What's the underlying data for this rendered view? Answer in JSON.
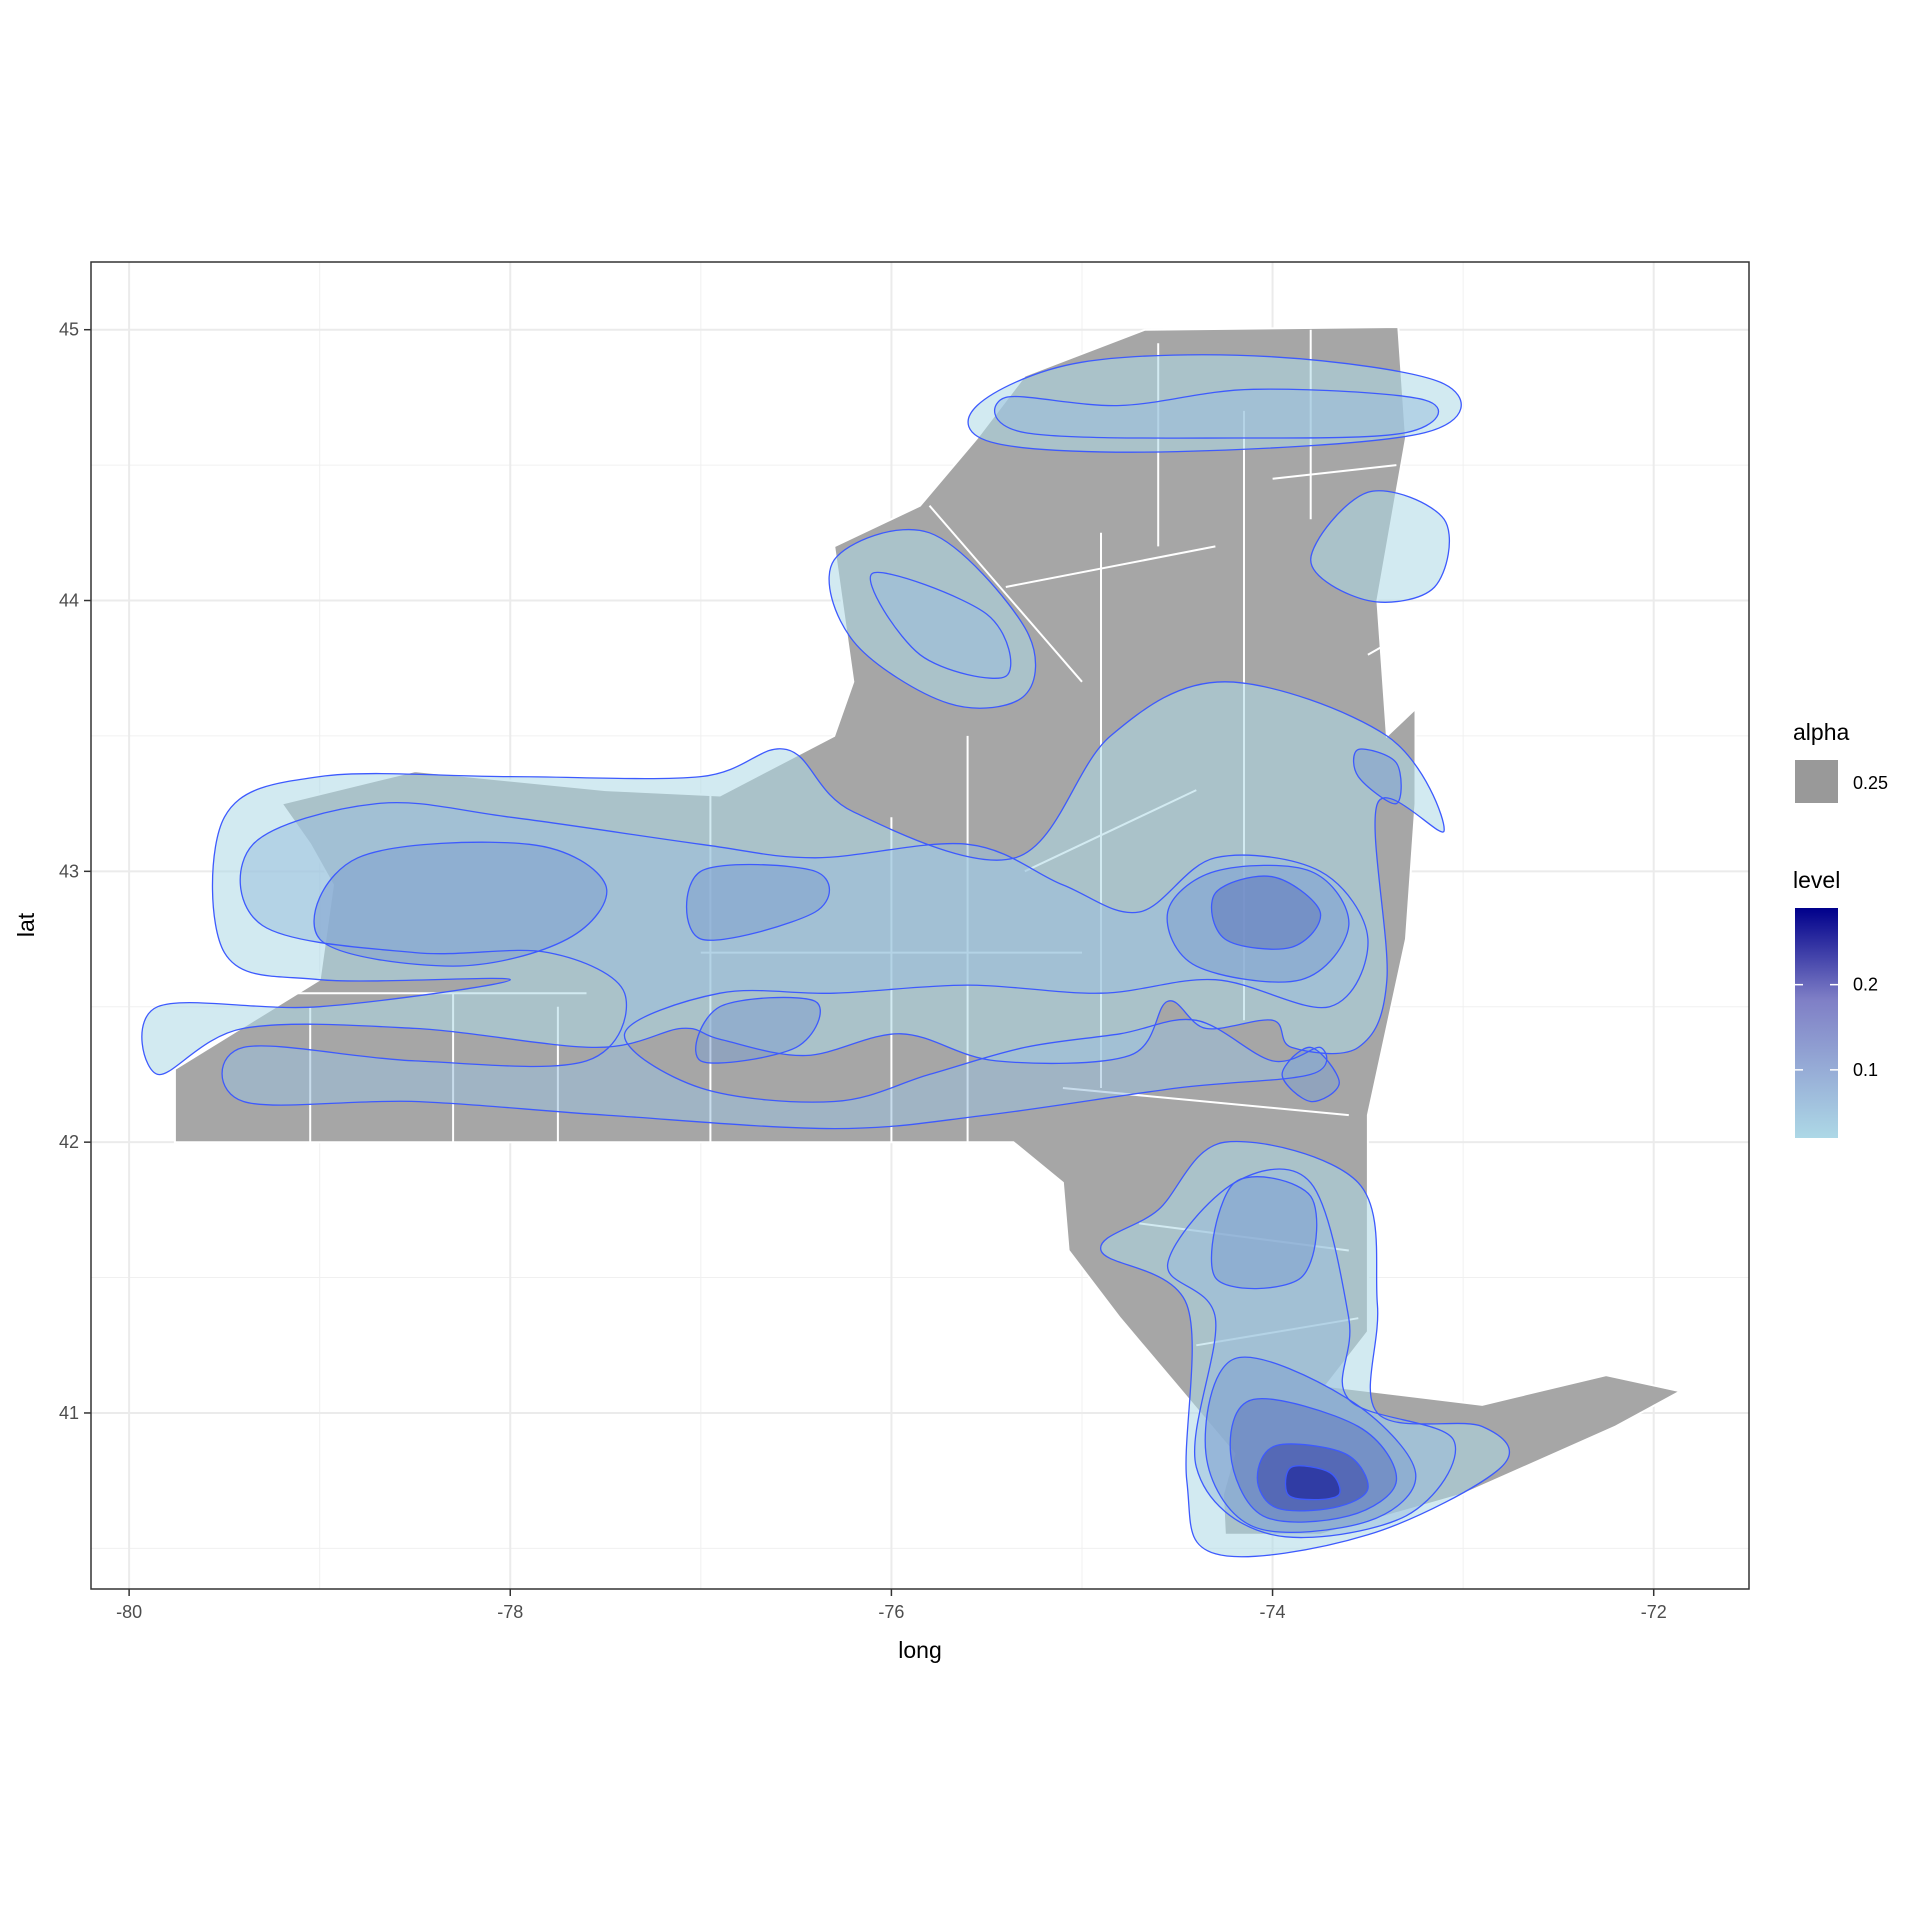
{
  "chart_data": {
    "type": "density-map",
    "title": "",
    "xlabel": "long",
    "ylabel": "lat",
    "xlim": [
      -80.2,
      -71.5
    ],
    "ylim": [
      40.35,
      45.25
    ],
    "x_ticks": [
      -80,
      -78,
      -76,
      -74,
      -72
    ],
    "y_ticks": [
      41,
      42,
      43,
      44,
      45
    ],
    "x_tick_labels": [
      "-80",
      "-78",
      "-76",
      "-74",
      "-72"
    ],
    "y_tick_labels": [
      "41",
      "42",
      "43",
      "44",
      "45"
    ],
    "grid": true,
    "legend_position": "right",
    "legend": {
      "alpha": {
        "title": "alpha",
        "entries": [
          {
            "label": "0.25",
            "color": "#999999"
          }
        ]
      },
      "level": {
        "title": "level",
        "tick_values": [
          0.1,
          0.2
        ],
        "tick_labels": [
          "0.1",
          "0.2"
        ],
        "range": [
          0.02,
          0.29
        ],
        "low_color": "#add8e6",
        "high_color": "#00008b"
      }
    },
    "colors": {
      "map_fill": "#a6a6a6",
      "county_border": "#ffffff",
      "contour_line": "#3d5afe",
      "grid": "#ebebeb",
      "panel_border": "#333333"
    },
    "state_outline": [
      [
        -79.76,
        42.0
      ],
      [
        -79.76,
        42.27
      ],
      [
        -79.0,
        42.6
      ],
      [
        -78.93,
        42.95
      ],
      [
        -79.05,
        43.1
      ],
      [
        -79.2,
        43.25
      ],
      [
        -78.5,
        43.37
      ],
      [
        -77.5,
        43.3
      ],
      [
        -76.9,
        43.28
      ],
      [
        -76.3,
        43.5
      ],
      [
        -76.2,
        43.7
      ],
      [
        -76.3,
        44.2
      ],
      [
        -75.85,
        44.35
      ],
      [
        -75.55,
        44.6
      ],
      [
        -75.3,
        44.83
      ],
      [
        -74.67,
        45.0
      ],
      [
        -73.34,
        45.01
      ],
      [
        -73.3,
        44.6
      ],
      [
        -73.45,
        44.0
      ],
      [
        -73.4,
        43.5
      ],
      [
        -73.25,
        43.6
      ],
      [
        -73.25,
        43.25
      ],
      [
        -73.3,
        42.75
      ],
      [
        -73.5,
        42.1
      ],
      [
        -73.5,
        41.3
      ],
      [
        -73.72,
        41.1
      ],
      [
        -72.9,
        41.03
      ],
      [
        -72.25,
        41.14
      ],
      [
        -71.86,
        41.08
      ],
      [
        -72.2,
        40.95
      ],
      [
        -73.0,
        40.7
      ],
      [
        -73.75,
        40.55
      ],
      [
        -74.25,
        40.55
      ],
      [
        -74.26,
        40.7
      ],
      [
        -74.2,
        40.85
      ],
      [
        -74.5,
        41.1
      ],
      [
        -74.8,
        41.35
      ],
      [
        -75.07,
        41.6
      ],
      [
        -75.1,
        41.85
      ],
      [
        -75.36,
        42.0
      ]
    ],
    "density_levels": [
      {
        "level": 0.02,
        "regions": [
          [
            [
              -79.85,
              42.25
            ],
            [
              -79.4,
              42.42
            ],
            [
              -78.5,
              42.42
            ],
            [
              -77.55,
              42.35
            ],
            [
              -77.1,
              42.42
            ],
            [
              -76.9,
              42.38
            ],
            [
              -76.45,
              42.32
            ],
            [
              -75.95,
              42.4
            ],
            [
              -75.45,
              42.3
            ],
            [
              -74.75,
              42.32
            ],
            [
              -74.55,
              42.52
            ],
            [
              -74.35,
              42.42
            ],
            [
              -74.0,
              42.45
            ],
            [
              -73.9,
              42.35
            ],
            [
              -73.55,
              42.35
            ],
            [
              -73.4,
              42.6
            ],
            [
              -73.45,
              43.25
            ],
            [
              -73.1,
              43.15
            ],
            [
              -73.4,
              43.5
            ],
            [
              -74.25,
              43.7
            ],
            [
              -74.85,
              43.5
            ],
            [
              -75.35,
              43.05
            ],
            [
              -76.2,
              43.22
            ],
            [
              -76.55,
              43.45
            ],
            [
              -77.0,
              43.35
            ],
            [
              -78.0,
              43.35
            ],
            [
              -79.0,
              43.35
            ],
            [
              -79.5,
              43.2
            ],
            [
              -79.5,
              42.7
            ],
            [
              -79.0,
              42.6
            ],
            [
              -78.0,
              42.6
            ],
            [
              -79.0,
              42.5
            ],
            [
              -79.85,
              42.5
            ]
          ],
          [
            [
              -74.6,
              41.75
            ],
            [
              -74.25,
              42.0
            ],
            [
              -73.55,
              41.85
            ],
            [
              -73.45,
              41.4
            ],
            [
              -73.45,
              41.0
            ],
            [
              -72.9,
              40.95
            ],
            [
              -72.8,
              40.8
            ],
            [
              -73.5,
              40.55
            ],
            [
              -74.3,
              40.48
            ],
            [
              -74.45,
              40.75
            ],
            [
              -74.45,
              41.4
            ],
            [
              -74.9,
              41.6
            ]
          ],
          [
            [
              -75.55,
              44.72
            ],
            [
              -75.0,
              44.88
            ],
            [
              -74.0,
              44.9
            ],
            [
              -73.1,
              44.8
            ],
            [
              -73.2,
              44.62
            ],
            [
              -74.5,
              44.55
            ],
            [
              -75.45,
              44.58
            ]
          ],
          [
            [
              -73.5,
              44.4
            ],
            [
              -73.1,
              44.3
            ],
            [
              -73.15,
              44.05
            ],
            [
              -73.5,
              44.0
            ],
            [
              -73.8,
              44.15
            ]
          ],
          [
            [
              -76.3,
              44.15
            ],
            [
              -75.8,
              44.25
            ],
            [
              -75.3,
              43.9
            ],
            [
              -75.3,
              43.65
            ],
            [
              -75.7,
              43.62
            ],
            [
              -76.2,
              43.85
            ]
          ]
        ]
      },
      {
        "level": 0.05,
        "regions": [
          [
            [
              -79.4,
              42.35
            ],
            [
              -78.5,
              42.3
            ],
            [
              -77.6,
              42.3
            ],
            [
              -77.4,
              42.55
            ],
            [
              -77.8,
              42.7
            ],
            [
              -78.5,
              42.7
            ],
            [
              -79.3,
              42.8
            ],
            [
              -79.35,
              43.1
            ],
            [
              -78.7,
              43.25
            ],
            [
              -78.0,
              43.2
            ],
            [
              -77.0,
              43.1
            ],
            [
              -76.4,
              43.05
            ],
            [
              -75.6,
              43.1
            ],
            [
              -75.1,
              42.95
            ],
            [
              -74.7,
              42.85
            ],
            [
              -74.3,
              43.05
            ],
            [
              -73.75,
              43.0
            ],
            [
              -73.5,
              42.75
            ],
            [
              -73.7,
              42.5
            ],
            [
              -74.3,
              42.6
            ],
            [
              -74.9,
              42.55
            ],
            [
              -75.6,
              42.58
            ],
            [
              -76.3,
              42.55
            ],
            [
              -76.9,
              42.55
            ],
            [
              -77.4,
              42.4
            ],
            [
              -77.0,
              42.2
            ],
            [
              -76.3,
              42.15
            ],
            [
              -75.8,
              42.25
            ],
            [
              -75.3,
              42.35
            ],
            [
              -74.8,
              42.4
            ],
            [
              -74.4,
              42.45
            ],
            [
              -74.0,
              42.3
            ],
            [
              -73.75,
              42.35
            ],
            [
              -73.8,
              42.25
            ],
            [
              -74.5,
              42.2
            ],
            [
              -75.5,
              42.1
            ],
            [
              -76.3,
              42.05
            ],
            [
              -77.5,
              42.1
            ],
            [
              -78.5,
              42.15
            ],
            [
              -79.4,
              42.15
            ]
          ],
          [
            [
              -74.2,
              41.85
            ],
            [
              -73.8,
              41.85
            ],
            [
              -73.6,
              41.35
            ],
            [
              -73.6,
              41.05
            ],
            [
              -73.05,
              40.9
            ],
            [
              -73.3,
              40.62
            ],
            [
              -74.0,
              40.55
            ],
            [
              -74.4,
              40.8
            ],
            [
              -74.3,
              41.35
            ],
            [
              -74.55,
              41.55
            ]
          ],
          [
            [
              -75.4,
              44.75
            ],
            [
              -74.8,
              44.72
            ],
            [
              -74.1,
              44.78
            ],
            [
              -73.2,
              44.74
            ],
            [
              -73.3,
              44.62
            ],
            [
              -74.2,
              44.6
            ],
            [
              -75.3,
              44.62
            ]
          ],
          [
            [
              -76.1,
              44.1
            ],
            [
              -75.5,
              43.95
            ],
            [
              -75.4,
              43.72
            ],
            [
              -75.85,
              43.8
            ]
          ]
        ]
      },
      {
        "level": 0.09,
        "regions": [
          [
            [
              -79.0,
              42.75
            ],
            [
              -78.3,
              42.65
            ],
            [
              -77.7,
              42.75
            ],
            [
              -77.5,
              42.95
            ],
            [
              -77.9,
              43.1
            ],
            [
              -78.8,
              43.05
            ]
          ],
          [
            [
              -77.0,
              42.75
            ],
            [
              -76.4,
              42.85
            ],
            [
              -76.4,
              43.0
            ],
            [
              -77.0,
              43.0
            ]
          ],
          [
            [
              -77.0,
              42.3
            ],
            [
              -76.5,
              42.35
            ],
            [
              -76.4,
              42.52
            ],
            [
              -76.9,
              42.5
            ]
          ],
          [
            [
              -74.4,
              42.65
            ],
            [
              -73.85,
              42.6
            ],
            [
              -73.6,
              42.8
            ],
            [
              -73.8,
              43.0
            ],
            [
              -74.3,
              43.0
            ],
            [
              -74.55,
              42.85
            ]
          ],
          [
            [
              -74.3,
              41.5
            ],
            [
              -73.85,
              41.5
            ],
            [
              -73.8,
              41.8
            ],
            [
              -74.2,
              41.85
            ]
          ],
          [
            [
              -74.2,
              41.2
            ],
            [
              -73.6,
              41.05
            ],
            [
              -73.25,
              40.78
            ],
            [
              -73.5,
              40.6
            ],
            [
              -74.1,
              40.58
            ],
            [
              -74.35,
              40.85
            ]
          ],
          [
            [
              -73.8,
              42.35
            ],
            [
              -73.65,
              42.22
            ],
            [
              -73.8,
              42.15
            ],
            [
              -73.95,
              42.25
            ]
          ],
          [
            [
              -73.55,
              43.35
            ],
            [
              -73.35,
              43.25
            ],
            [
              -73.35,
              43.4
            ],
            [
              -73.55,
              43.45
            ]
          ]
        ]
      },
      {
        "level": 0.14,
        "regions": [
          [
            [
              -74.25,
              42.75
            ],
            [
              -73.9,
              42.72
            ],
            [
              -73.75,
              42.85
            ],
            [
              -74.0,
              42.98
            ],
            [
              -74.3,
              42.92
            ]
          ],
          [
            [
              -74.1,
              41.05
            ],
            [
              -73.55,
              40.95
            ],
            [
              -73.35,
              40.75
            ],
            [
              -73.6,
              40.62
            ],
            [
              -74.05,
              40.62
            ],
            [
              -74.22,
              40.85
            ]
          ]
        ]
      },
      {
        "level": 0.2,
        "regions": [
          [
            [
              -73.98,
              40.88
            ],
            [
              -73.62,
              40.85
            ],
            [
              -73.5,
              40.72
            ],
            [
              -73.68,
              40.65
            ],
            [
              -73.98,
              40.65
            ],
            [
              -74.08,
              40.76
            ]
          ]
        ]
      },
      {
        "level": 0.26,
        "regions": [
          [
            [
              -73.9,
              40.8
            ],
            [
              -73.7,
              40.78
            ],
            [
              -73.65,
              40.7
            ],
            [
              -73.78,
              40.68
            ],
            [
              -73.92,
              40.7
            ]
          ]
        ]
      }
    ]
  }
}
